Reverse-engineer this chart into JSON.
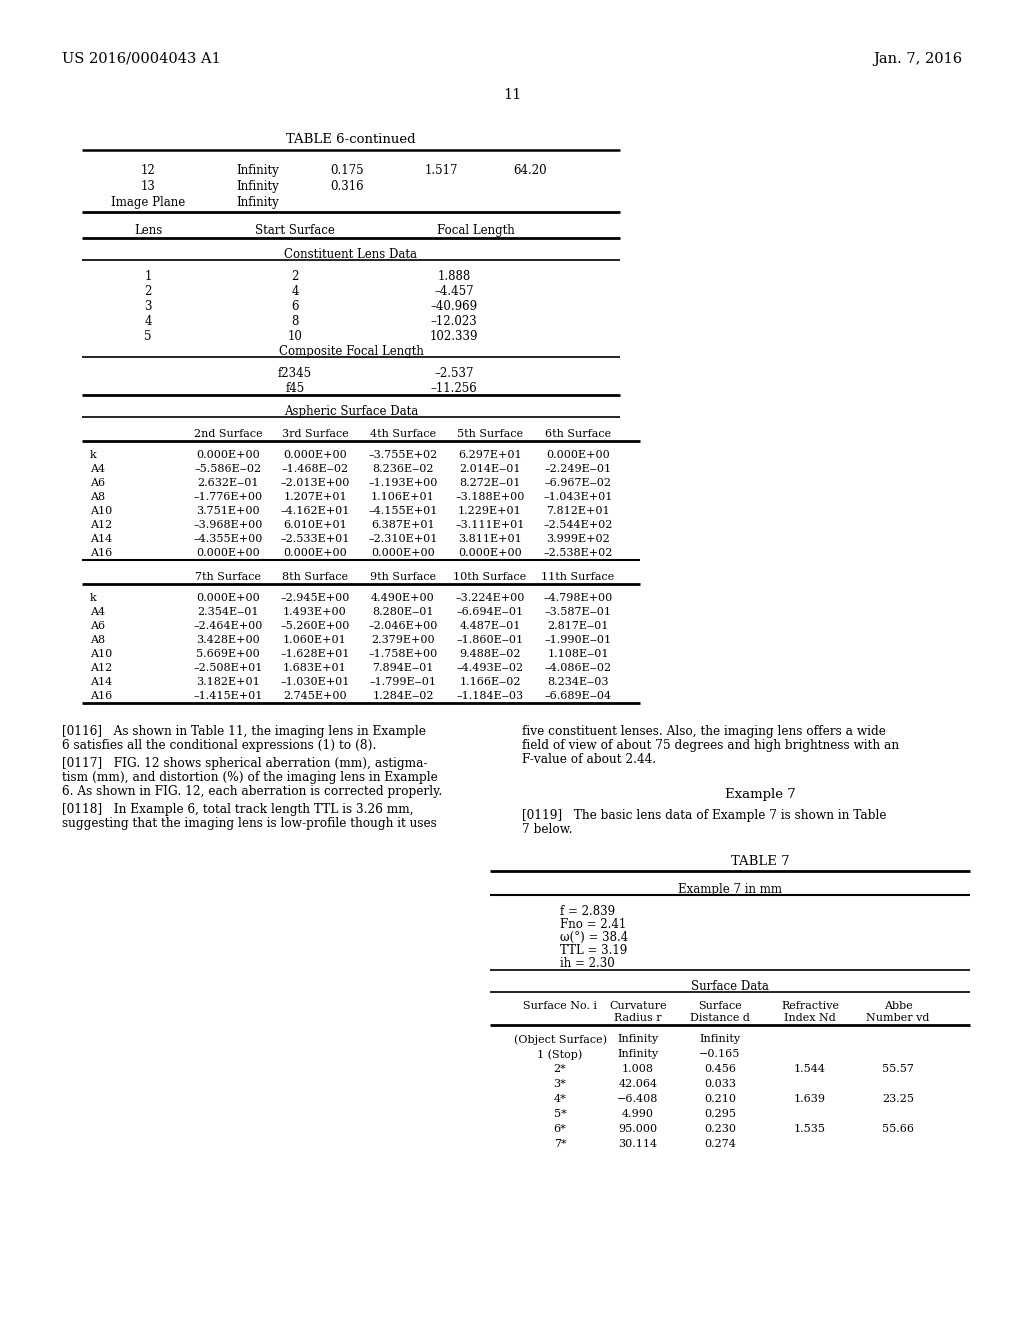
{
  "header_left": "US 2016/0004043 A1",
  "header_right": "Jan. 7, 2016",
  "page_number": "11",
  "background_color": "#ffffff",
  "table6_title": "TABLE 6-continued",
  "table6_top_rows": [
    [
      "12",
      "Infinity",
      "0.175",
      "1.517",
      "64.20"
    ],
    [
      "13",
      "Infinity",
      "0.316",
      "",
      ""
    ],
    [
      "Image Plane",
      "Infinity",
      "",
      "",
      ""
    ]
  ],
  "constituent_rows": [
    [
      "1",
      "2",
      "1.888"
    ],
    [
      "2",
      "4",
      "–4.457"
    ],
    [
      "3",
      "6",
      "–40.969"
    ],
    [
      "4",
      "8",
      "–12.023"
    ],
    [
      "5",
      "10",
      "102.339"
    ]
  ],
  "composite_rows": [
    [
      "f2345",
      "–2.537"
    ],
    [
      "f45",
      "–11.256"
    ]
  ],
  "aspheric_header1": [
    "2nd Surface",
    "3rd Surface",
    "4th Surface",
    "5th Surface",
    "6th Surface"
  ],
  "aspheric_data1": [
    [
      "k",
      "0.000E+00",
      "0.000E+00",
      "–3.755E+02",
      "6.297E+01",
      "0.000E+00"
    ],
    [
      "A4",
      "–5.586E‒02",
      "–1.468E‒02",
      "8.236E‒02",
      "2.014E‒01",
      "–2.249E‒01"
    ],
    [
      "A6",
      "2.632E‒01",
      "–2.013E+00",
      "–1.193E+00",
      "8.272E‒01",
      "–6.967E‒02"
    ],
    [
      "A8",
      "–1.776E+00",
      "1.207E+01",
      "1.106E+01",
      "–3.188E+00",
      "–1.043E+01"
    ],
    [
      "A10",
      "3.751E+00",
      "–4.162E+01",
      "–4.155E+01",
      "1.229E+01",
      "7.812E+01"
    ],
    [
      "A12",
      "–3.968E+00",
      "6.010E+01",
      "6.387E+01",
      "–3.111E+01",
      "–2.544E+02"
    ],
    [
      "A14",
      "–4.355E+00",
      "–2.533E+01",
      "–2.310E+01",
      "3.811E+01",
      "3.999E+02"
    ],
    [
      "A16",
      "0.000E+00",
      "0.000E+00",
      "0.000E+00",
      "0.000E+00",
      "–2.538E+02"
    ]
  ],
  "aspheric_header2": [
    "7th Surface",
    "8th Surface",
    "9th Surface",
    "10th Surface",
    "11th Surface"
  ],
  "aspheric_data2": [
    [
      "k",
      "0.000E+00",
      "–2.945E+00",
      "4.490E+00",
      "–3.224E+00",
      "–4.798E+00"
    ],
    [
      "A4",
      "2.354E‒01",
      "1.493E+00",
      "8.280E‒01",
      "–6.694E‒01",
      "–3.587E‒01"
    ],
    [
      "A6",
      "–2.464E+00",
      "–5.260E+00",
      "–2.046E+00",
      "4.487E‒01",
      "2.817E‒01"
    ],
    [
      "A8",
      "3.428E+00",
      "1.060E+01",
      "2.379E+00",
      "–1.860E‒01",
      "–1.990E‒01"
    ],
    [
      "A10",
      "5.669E+00",
      "–1.628E+01",
      "–1.758E+00",
      "9.488E‒02",
      "1.108E‒01"
    ],
    [
      "A12",
      "–2.508E+01",
      "1.683E+01",
      "7.894E‒01",
      "–4.493E‒02",
      "–4.086E‒02"
    ],
    [
      "A14",
      "3.182E+01",
      "–1.030E+01",
      "–1.799E‒01",
      "1.166E‒02",
      "8.234E‒03"
    ],
    [
      "A16",
      "–1.415E+01",
      "2.745E+00",
      "1.284E‒02",
      "–1.184E‒03",
      "–6.689E‒04"
    ]
  ],
  "p116_left1": "[0116]   As shown in Table 11, the imaging lens in Example",
  "p116_left2": "6 satisfies all the conditional expressions (1) to (8).",
  "p117_left1": "[0117]   FIG. 12 shows spherical aberration (mm), astigma-",
  "p117_left2": "tism (mm), and distortion (%) of the imaging lens in Example",
  "p117_left3": "6. As shown in FIG. 12, each aberration is corrected properly.",
  "p118_left1": "[0118]   In Example 6, total track length TTL is 3.26 mm,",
  "p118_left2": "suggesting that the imaging lens is low-profile though it uses",
  "p116_right1": "five constituent lenses. Also, the imaging lens offers a wide",
  "p116_right2": "field of view of about 75 degrees and high brightness with an",
  "p116_right3": "F-value of about 2.44.",
  "example7_heading": "Example 7",
  "p119_right1": "[0119]   The basic lens data of Example 7 is shown in Table",
  "p119_right2": "7 below.",
  "table7_title": "TABLE 7",
  "table7_subtitle": "Example 7 in mm",
  "table7_params": [
    "f = 2.839",
    "Fno = 2.41",
    "ω(°) = 38.4",
    "TTL = 3.19",
    "ih = 2.30"
  ],
  "table7_col_h1": [
    "Surface No. i",
    "Curvature",
    "Surface",
    "Refractive",
    "Abbe"
  ],
  "table7_col_h2": [
    "",
    "Radius r",
    "Distance d",
    "Index Nd",
    "Number vd"
  ],
  "table7_rows": [
    [
      "(Object Surface)",
      "Infinity",
      "Infinity",
      "",
      ""
    ],
    [
      "1 (Stop)",
      "Infinity",
      "−0.165",
      "",
      ""
    ],
    [
      "2*",
      "1.008",
      "0.456",
      "1.544",
      "55.57"
    ],
    [
      "3*",
      "42.064",
      "0.033",
      "",
      ""
    ],
    [
      "4*",
      "−6.408",
      "0.210",
      "1.639",
      "23.25"
    ],
    [
      "5*",
      "4.990",
      "0.295",
      "",
      ""
    ],
    [
      "6*",
      "95.000",
      "0.230",
      "1.535",
      "55.66"
    ],
    [
      "7*",
      "30.114",
      "0.274",
      "",
      ""
    ]
  ]
}
